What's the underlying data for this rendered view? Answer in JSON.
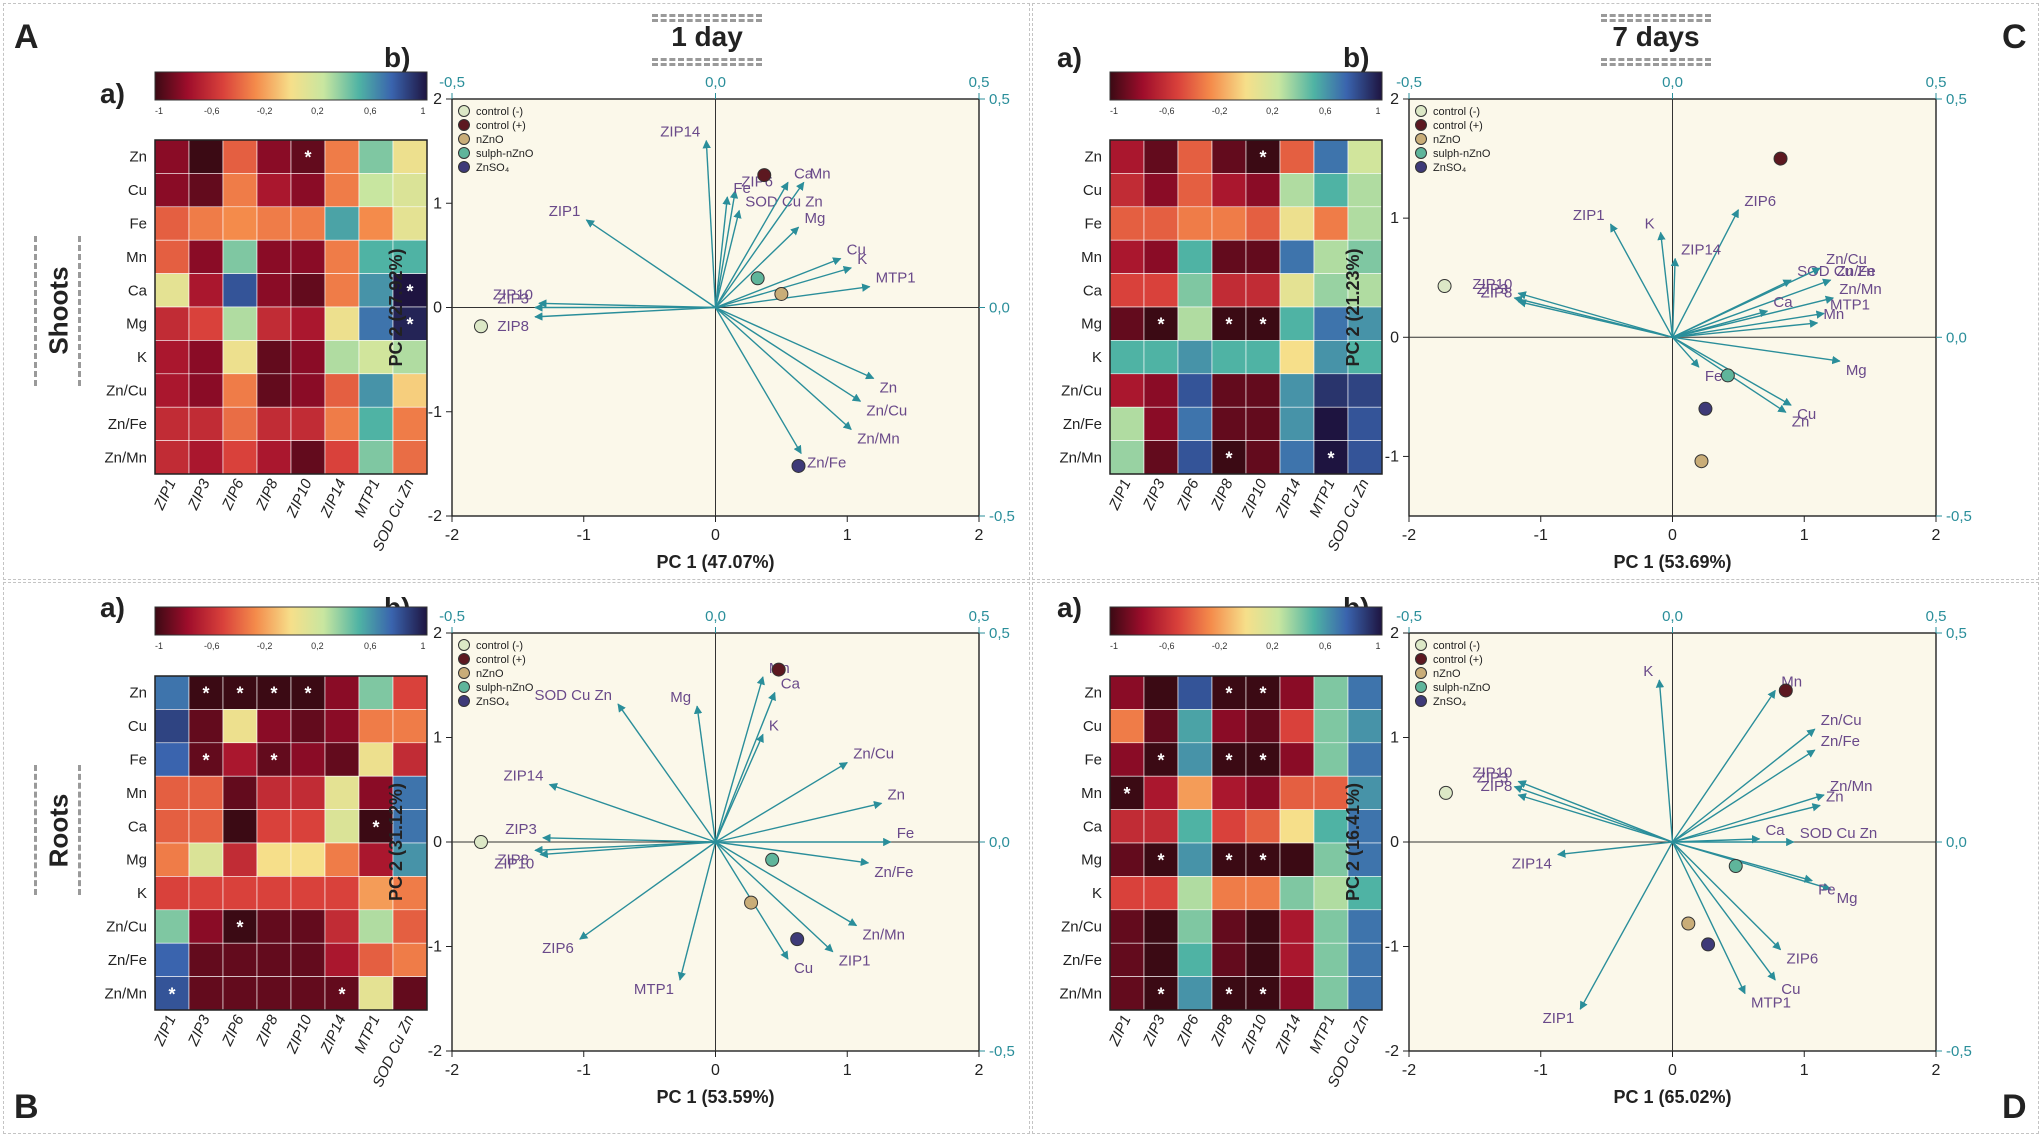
{
  "corner_labels": [
    "A",
    "B",
    "C",
    "D"
  ],
  "day_labels": [
    "1 day",
    "7 days"
  ],
  "row_labels": [
    "Shoots",
    "Roots"
  ],
  "sub_labels": {
    "heatmap": "a)",
    "biplot": "b)"
  },
  "colorbar_ticks": [
    "-1",
    "-0,6",
    "-0,2",
    "0,2",
    "0,6",
    "1"
  ],
  "legend_entries": [
    {
      "label": "control (-)",
      "color": "#dce8c6"
    },
    {
      "label": "control (+)",
      "color": "#5c1820"
    },
    {
      "label": "nZnO",
      "color": "#c9ad78"
    },
    {
      "label": "sulph-nZnO",
      "color": "#5fb59b"
    },
    {
      "label": "ZnSO₄",
      "color": "#3e3a78"
    }
  ],
  "chart_data": [
    {
      "type": "heatmap",
      "id": "A-heatmap",
      "rows": [
        "Zn",
        "Cu",
        "Fe",
        "Mn",
        "Ca",
        "Mg",
        "K",
        "Zn/Cu",
        "Zn/Fe",
        "Zn/Mn"
      ],
      "columns": [
        "ZIP1",
        "ZIP3",
        "ZIP6",
        "ZIP8",
        "ZIP10",
        "ZIP14",
        "MTP1",
        "SOD Cu Zn"
      ],
      "values": [
        [
          -0.8,
          -1,
          -0.4,
          -0.8,
          -0.9,
          -0.3,
          0.4,
          0.05
        ],
        [
          -0.8,
          -0.9,
          -0.3,
          -0.7,
          -0.8,
          -0.3,
          0.25,
          0.15
        ],
        [
          -0.4,
          -0.3,
          -0.25,
          -0.3,
          -0.3,
          0.55,
          -0.25,
          0.1
        ],
        [
          -0.4,
          -0.8,
          0.4,
          -0.8,
          -0.8,
          -0.3,
          0.5,
          0.5
        ],
        [
          0.1,
          -0.7,
          0.8,
          -0.8,
          -0.9,
          -0.3,
          0.6,
          1
        ],
        [
          -0.6,
          -0.5,
          0.3,
          -0.6,
          -0.7,
          0.05,
          0.7,
          0.95
        ],
        [
          -0.7,
          -0.8,
          0.05,
          -0.9,
          -0.8,
          0.3,
          0.2,
          0.3
        ],
        [
          -0.7,
          -0.8,
          -0.3,
          -0.9,
          -0.8,
          -0.4,
          0.6,
          -0.05
        ],
        [
          -0.6,
          -0.6,
          -0.35,
          -0.6,
          -0.6,
          -0.3,
          0.5,
          -0.3
        ],
        [
          -0.6,
          -0.7,
          -0.5,
          -0.7,
          -0.9,
          -0.5,
          0.4,
          -0.35
        ]
      ],
      "significant": [
        [
          0,
          4
        ],
        [
          4,
          7
        ],
        [
          5,
          7
        ]
      ]
    },
    {
      "type": "scatter",
      "id": "A-biplot",
      "xlabel": "PC 1 (47.07%)",
      "ylabel": "PC 2 (27.92%)",
      "xlim": [
        -2,
        2
      ],
      "ylim": [
        -2,
        2
      ],
      "xticks": [
        "-2",
        "-1",
        "0",
        "1",
        "2"
      ],
      "yticks": [
        "-2",
        "-1",
        "0",
        "1",
        "2"
      ],
      "top_ticks": [
        "-0,5",
        "0,0",
        "0,5"
      ],
      "right_ticks": [
        "-0,5",
        "0,0",
        "0,5"
      ],
      "points": [
        [
          -1.78,
          -0.18
        ],
        [
          0.37,
          1.27
        ],
        [
          0.5,
          0.13
        ],
        [
          0.32,
          0.28
        ],
        [
          0.63,
          -1.52
        ]
      ],
      "loadings": [
        {
          "label": "ZIP14",
          "x": -0.07,
          "y": 1.6
        },
        {
          "label": "ZIP6",
          "x": 0.15,
          "y": 1.12
        },
        {
          "label": "Fe",
          "x": 0.09,
          "y": 1.06
        },
        {
          "label": "SOD Cu Zn",
          "x": 0.18,
          "y": 0.93
        },
        {
          "label": "Ca",
          "x": 0.55,
          "y": 1.2
        },
        {
          "label": "Mn",
          "x": 0.67,
          "y": 1.2
        },
        {
          "label": "Mg",
          "x": 0.63,
          "y": 0.77
        },
        {
          "label": "Cu",
          "x": 0.95,
          "y": 0.47
        },
        {
          "label": "K",
          "x": 1.03,
          "y": 0.38
        },
        {
          "label": "MTP1",
          "x": 1.17,
          "y": 0.2
        },
        {
          "label": "ZIP1",
          "x": -0.98,
          "y": 0.84
        },
        {
          "label": "ZIP10",
          "x": -1.34,
          "y": 0.04
        },
        {
          "label": "ZIP3",
          "x": -1.37,
          "y": 0.0
        },
        {
          "label": "ZIP8",
          "x": -1.37,
          "y": -0.09
        },
        {
          "label": "Zn",
          "x": 1.2,
          "y": -0.68
        },
        {
          "label": "Zn/Cu",
          "x": 1.1,
          "y": -0.9
        },
        {
          "label": "Zn/Mn",
          "x": 1.03,
          "y": -1.17
        },
        {
          "label": "Zn/Fe",
          "x": 0.65,
          "y": -1.4
        }
      ]
    },
    {
      "type": "heatmap",
      "id": "B-heatmap",
      "rows": [
        "Zn",
        "Cu",
        "Fe",
        "Mn",
        "Ca",
        "Mg",
        "K",
        "Zn/Cu",
        "Zn/Fe",
        "Zn/Mn"
      ],
      "columns": [
        "ZIP1",
        "ZIP3",
        "ZIP6",
        "ZIP8",
        "ZIP10",
        "ZIP14",
        "MTP1",
        "SOD Cu Zn"
      ],
      "values": [
        [
          0.7,
          -1,
          -1,
          -1,
          -1,
          -0.8,
          0.4,
          -0.5
        ],
        [
          0.85,
          -0.9,
          0.05,
          -0.8,
          -0.9,
          -0.8,
          -0.3,
          -0.3
        ],
        [
          0.75,
          -0.9,
          -0.7,
          -0.9,
          -0.8,
          -0.9,
          0.05,
          -0.6
        ],
        [
          -0.4,
          -0.4,
          -0.9,
          -0.6,
          -0.6,
          0.1,
          -0.8,
          0.7
        ],
        [
          -0.4,
          -0.4,
          -1,
          -0.5,
          -0.5,
          0.15,
          -1,
          0.7
        ],
        [
          -0.3,
          0.15,
          -0.6,
          0.0,
          0.0,
          -0.3,
          -0.7,
          0.6
        ],
        [
          -0.5,
          -0.5,
          -0.5,
          -0.5,
          -0.5,
          -0.5,
          -0.2,
          -0.3
        ],
        [
          0.4,
          -0.8,
          -1,
          -0.9,
          -0.9,
          -0.6,
          0.3,
          -0.4
        ],
        [
          0.75,
          -0.9,
          -0.9,
          -0.9,
          -0.9,
          -0.7,
          -0.4,
          -0.3
        ],
        [
          0.8,
          -0.9,
          -0.9,
          -0.9,
          -0.9,
          -0.9,
          0.1,
          -0.9
        ]
      ],
      "significant": [
        [
          0,
          1
        ],
        [
          0,
          2
        ],
        [
          0,
          3
        ],
        [
          0,
          4
        ],
        [
          2,
          1
        ],
        [
          2,
          3
        ],
        [
          4,
          6
        ],
        [
          7,
          2
        ],
        [
          9,
          0
        ],
        [
          9,
          5
        ]
      ]
    },
    {
      "type": "scatter",
      "id": "B-biplot",
      "xlabel": "PC 1 (53.59%)",
      "ylabel": "PC 2 (31.12%)",
      "xlim": [
        -2,
        2
      ],
      "ylim": [
        -2,
        2
      ],
      "xticks": [
        "-2",
        "-1",
        "0",
        "1",
        "2"
      ],
      "yticks": [
        "-2",
        "-1",
        "0",
        "1",
        "2"
      ],
      "top_ticks": [
        "-0,5",
        "0,0",
        "0,5"
      ],
      "right_ticks": [
        "-0,5",
        "0,0",
        "0,5"
      ],
      "points": [
        [
          -1.78,
          0.0
        ],
        [
          0.48,
          1.65
        ],
        [
          0.27,
          -0.58
        ],
        [
          0.43,
          -0.17
        ],
        [
          0.62,
          -0.93
        ]
      ],
      "loadings": [
        {
          "label": "SOD Cu Zn",
          "x": -0.74,
          "y": 1.32
        },
        {
          "label": "Mg",
          "x": -0.14,
          "y": 1.3
        },
        {
          "label": "Mn",
          "x": 0.36,
          "y": 1.58
        },
        {
          "label": "Ca",
          "x": 0.45,
          "y": 1.43
        },
        {
          "label": "K",
          "x": 0.36,
          "y": 1.03
        },
        {
          "label": "Zn/Cu",
          "x": 1.0,
          "y": 0.76
        },
        {
          "label": "Zn",
          "x": 1.26,
          "y": 0.37
        },
        {
          "label": "Fe",
          "x": 1.33,
          "y": 0.0
        },
        {
          "label": "Zn/Fe",
          "x": 1.16,
          "y": -0.2
        },
        {
          "label": "Zn/Mn",
          "x": 1.07,
          "y": -0.8
        },
        {
          "label": "ZIP1",
          "x": 0.89,
          "y": -1.05
        },
        {
          "label": "Cu",
          "x": 0.55,
          "y": -1.12
        },
        {
          "label": "MTP1",
          "x": -0.27,
          "y": -1.32
        },
        {
          "label": "ZIP6",
          "x": -1.03,
          "y": -0.93
        },
        {
          "label": "ZIP14",
          "x": -1.26,
          "y": 0.55
        },
        {
          "label": "ZIP3",
          "x": -1.31,
          "y": 0.04
        },
        {
          "label": "ZIP8",
          "x": -1.37,
          "y": -0.08
        },
        {
          "label": "ZIP10",
          "x": -1.33,
          "y": -0.12
        }
      ]
    },
    {
      "type": "heatmap",
      "id": "C-heatmap",
      "rows": [
        "Zn",
        "Cu",
        "Fe",
        "Mn",
        "Ca",
        "Mg",
        "K",
        "Zn/Cu",
        "Zn/Fe",
        "Zn/Mn"
      ],
      "columns": [
        "ZIP1",
        "ZIP3",
        "ZIP6",
        "ZIP8",
        "ZIP10",
        "ZIP14",
        "MTP1",
        "SOD Cu Zn"
      ],
      "values": [
        [
          -0.7,
          -0.9,
          -0.4,
          -0.9,
          -1,
          -0.4,
          0.7,
          0.2
        ],
        [
          -0.6,
          -0.8,
          -0.4,
          -0.7,
          -0.8,
          0.3,
          0.5,
          0.3
        ],
        [
          -0.4,
          -0.4,
          -0.3,
          -0.3,
          -0.4,
          0.05,
          -0.3,
          0.3
        ],
        [
          -0.7,
          -0.8,
          0.5,
          -0.9,
          -0.9,
          0.7,
          0.3,
          0.4
        ],
        [
          -0.5,
          -0.5,
          0.4,
          -0.6,
          -0.6,
          0.1,
          0.35,
          0.3
        ],
        [
          -0.9,
          -1,
          0.3,
          -1,
          -1,
          0.5,
          0.7,
          0.6
        ],
        [
          0.5,
          0.5,
          0.6,
          0.5,
          0.5,
          0.0,
          0.6,
          0.5
        ],
        [
          -0.7,
          -0.8,
          0.8,
          -0.9,
          -0.9,
          0.6,
          0.9,
          0.85
        ],
        [
          0.3,
          -0.8,
          0.7,
          -0.9,
          -0.9,
          0.6,
          1,
          0.8
        ],
        [
          0.35,
          -0.9,
          0.8,
          -1,
          -0.9,
          0.7,
          1,
          0.8
        ]
      ],
      "significant": [
        [
          0,
          4
        ],
        [
          5,
          1
        ],
        [
          5,
          3
        ],
        [
          5,
          4
        ],
        [
          9,
          3
        ],
        [
          9,
          6
        ]
      ]
    },
    {
      "type": "scatter",
      "id": "C-biplot",
      "xlabel": "PC 1 (53.69%)",
      "ylabel": "PC 2 (21.23%)",
      "xlim": [
        -2,
        2
      ],
      "ylim": [
        -1.5,
        2
      ],
      "xticks": [
        "-2",
        "-1",
        "0",
        "1",
        "2"
      ],
      "yticks": [
        "-1",
        "0",
        "1",
        "2"
      ],
      "top_ticks": [
        "-0,5",
        "0,0",
        "0,5"
      ],
      "right_ticks": [
        "-0,5",
        "0,0",
        "0,5"
      ],
      "points": [
        [
          -1.73,
          0.43
        ],
        [
          0.82,
          1.5
        ],
        [
          0.22,
          -1.04
        ],
        [
          0.42,
          -0.32
        ],
        [
          0.25,
          -0.6
        ]
      ],
      "loadings": [
        {
          "label": "ZIP1",
          "x": -0.47,
          "y": 0.95
        },
        {
          "label": "K",
          "x": -0.09,
          "y": 0.88
        },
        {
          "label": "ZIP6",
          "x": 0.5,
          "y": 1.07
        },
        {
          "label": "ZIP14",
          "x": 0.02,
          "y": 0.66
        },
        {
          "label": "SOD Cu Zn",
          "x": 0.9,
          "y": 0.48
        },
        {
          "label": "Zn/Cu",
          "x": 1.12,
          "y": 0.58
        },
        {
          "label": "Zn/Fe",
          "x": 1.2,
          "y": 0.48
        },
        {
          "label": "Zn/Mn",
          "x": 1.22,
          "y": 0.33
        },
        {
          "label": "MTP1",
          "x": 1.15,
          "y": 0.2
        },
        {
          "label": "Ca",
          "x": 0.72,
          "y": 0.22
        },
        {
          "label": "Mn",
          "x": 1.1,
          "y": 0.12
        },
        {
          "label": "Mg",
          "x": 1.27,
          "y": -0.2
        },
        {
          "label": "Fe",
          "x": 0.2,
          "y": -0.25
        },
        {
          "label": "Cu",
          "x": 0.9,
          "y": -0.57
        },
        {
          "label": "Zn",
          "x": 0.86,
          "y": -0.63
        },
        {
          "label": "ZIP10",
          "x": -1.17,
          "y": 0.37
        },
        {
          "label": "ZIP3",
          "x": -1.2,
          "y": 0.33
        },
        {
          "label": "ZIP8",
          "x": -1.17,
          "y": 0.3
        }
      ]
    },
    {
      "type": "heatmap",
      "id": "D-heatmap",
      "rows": [
        "Zn",
        "Cu",
        "Fe",
        "Mn",
        "Ca",
        "Mg",
        "K",
        "Zn/Cu",
        "Zn/Fe",
        "Zn/Mn"
      ],
      "columns": [
        "ZIP1",
        "ZIP3",
        "ZIP6",
        "ZIP8",
        "ZIP10",
        "ZIP14",
        "MTP1",
        "SOD Cu Zn"
      ],
      "values": [
        [
          -0.8,
          -1,
          0.8,
          -1,
          -1,
          -0.8,
          0.4,
          0.7
        ],
        [
          -0.3,
          -0.9,
          0.55,
          -0.8,
          -0.9,
          -0.5,
          0.4,
          0.6
        ],
        [
          -0.8,
          -1,
          0.6,
          -1,
          -1,
          -0.8,
          0.4,
          0.7
        ],
        [
          -1,
          -0.7,
          -0.2,
          -0.7,
          -0.8,
          -0.4,
          -0.4,
          0.6
        ],
        [
          -0.6,
          -0.6,
          0.5,
          -0.5,
          -0.4,
          0.0,
          0.5,
          0.7
        ],
        [
          -0.9,
          -1,
          0.6,
          -1,
          -1,
          -1,
          0.4,
          0.7
        ],
        [
          -0.5,
          -0.5,
          0.3,
          -0.3,
          -0.3,
          0.4,
          0.3,
          0.5
        ],
        [
          -0.9,
          -1,
          0.4,
          -0.9,
          -1,
          -0.7,
          0.4,
          0.7
        ],
        [
          -0.9,
          -1,
          0.5,
          -0.9,
          -1,
          -0.7,
          0.4,
          0.7
        ],
        [
          -0.9,
          -1,
          0.6,
          -1,
          -1,
          -0.8,
          0.4,
          0.7
        ]
      ],
      "significant": [
        [
          0,
          3
        ],
        [
          0,
          4
        ],
        [
          2,
          1
        ],
        [
          2,
          3
        ],
        [
          2,
          4
        ],
        [
          3,
          0
        ],
        [
          5,
          1
        ],
        [
          5,
          3
        ],
        [
          5,
          4
        ],
        [
          9,
          1
        ],
        [
          9,
          3
        ],
        [
          9,
          4
        ]
      ]
    },
    {
      "type": "scatter",
      "id": "D-biplot",
      "xlabel": "PC 1 (65.02%)",
      "ylabel": "PC 2 (16.41%)",
      "xlim": [
        -2,
        2
      ],
      "ylim": [
        -2,
        2
      ],
      "xticks": [
        "-2",
        "-1",
        "0",
        "1",
        "2"
      ],
      "yticks": [
        "-2",
        "-1",
        "0",
        "1",
        "2"
      ],
      "top_ticks": [
        "-0,5",
        "0,0",
        "0,5"
      ],
      "right_ticks": [
        "-0,5",
        "0,0",
        "0,5"
      ],
      "points": [
        [
          -1.72,
          0.47
        ],
        [
          0.86,
          1.45
        ],
        [
          0.12,
          -0.78
        ],
        [
          0.48,
          -0.23
        ],
        [
          0.27,
          -0.98
        ]
      ],
      "loadings": [
        {
          "label": "K",
          "x": -0.1,
          "y": 1.55
        },
        {
          "label": "Mn",
          "x": 0.78,
          "y": 1.45
        },
        {
          "label": "Zn/Cu",
          "x": 1.08,
          "y": 1.08
        },
        {
          "label": "Zn/Fe",
          "x": 1.08,
          "y": 0.88
        },
        {
          "label": "Zn/Mn",
          "x": 1.15,
          "y": 0.45
        },
        {
          "label": "Zn",
          "x": 1.12,
          "y": 0.35
        },
        {
          "label": "SOD Cu Zn",
          "x": 0.92,
          "y": 0.0
        },
        {
          "label": "Ca",
          "x": 0.66,
          "y": 0.03
        },
        {
          "label": "Mg",
          "x": 1.2,
          "y": -0.45
        },
        {
          "label": "Fe",
          "x": 1.06,
          "y": -0.37
        },
        {
          "label": "ZIP6",
          "x": 0.82,
          "y": -1.03
        },
        {
          "label": "Cu",
          "x": 0.78,
          "y": -1.32
        },
        {
          "label": "MTP1",
          "x": 0.55,
          "y": -1.45
        },
        {
          "label": "ZIP1",
          "x": -0.7,
          "y": -1.6
        },
        {
          "label": "ZIP14",
          "x": -0.87,
          "y": -0.12
        },
        {
          "label": "ZIP10",
          "x": -1.17,
          "y": 0.58
        },
        {
          "label": "ZIP3",
          "x": -1.2,
          "y": 0.53
        },
        {
          "label": "ZIP8",
          "x": -1.17,
          "y": 0.45
        }
      ]
    }
  ]
}
